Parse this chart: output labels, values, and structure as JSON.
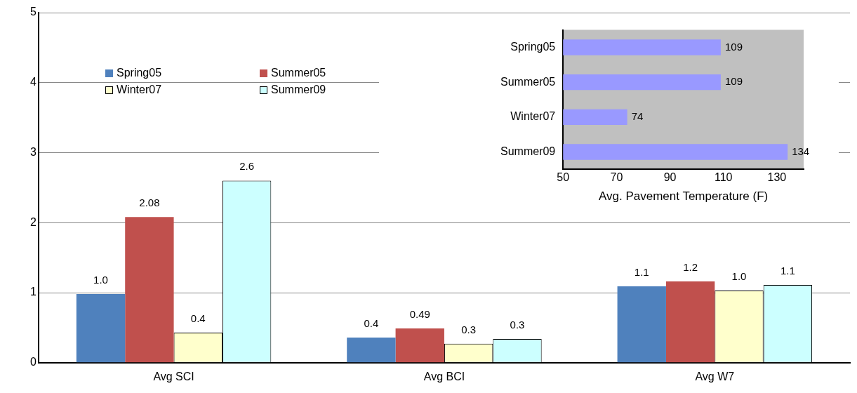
{
  "chart_data": [
    {
      "type": "bar",
      "categories": [
        "Avg SCI",
        "Avg BCI",
        "Avg W7"
      ],
      "ylim": [
        0,
        5
      ],
      "yticks": [
        0,
        1,
        2,
        3,
        4,
        5
      ],
      "grid": "y",
      "legend": "top left",
      "series": [
        {
          "name": "Spring05",
          "color": "#4f81bd",
          "values": [
            0.98,
            0.36,
            1.09
          ],
          "value_labels": [
            "1.0",
            "0.4",
            "1.1"
          ]
        },
        {
          "name": "Summer05",
          "color": "#c0504d",
          "values": [
            2.08,
            0.49,
            1.16
          ],
          "value_labels": [
            "2.08",
            "0.49",
            "1.2"
          ]
        },
        {
          "name": "Winter07",
          "color": "#ffffcc",
          "values": [
            0.43,
            0.27,
            1.03
          ],
          "value_labels": [
            "0.4",
            "0.3",
            "1.0"
          ]
        },
        {
          "name": "Summer09",
          "color": "#ccffff",
          "values": [
            2.6,
            0.34,
            1.11
          ],
          "value_labels": [
            "2.6",
            "0.3",
            "1.1"
          ]
        }
      ]
    },
    {
      "type": "bar",
      "orientation": "horizontal",
      "categories": [
        "Spring05",
        "Summer05",
        "Winter07",
        "Summer09"
      ],
      "values": [
        109,
        109,
        74,
        134
      ],
      "color": "#9999ff",
      "xlim": [
        50,
        140
      ],
      "xticks": [
        50,
        70,
        90,
        110,
        130
      ],
      "xlabel": "Avg. Pavement Temperature (F)",
      "data_labels": true
    }
  ]
}
